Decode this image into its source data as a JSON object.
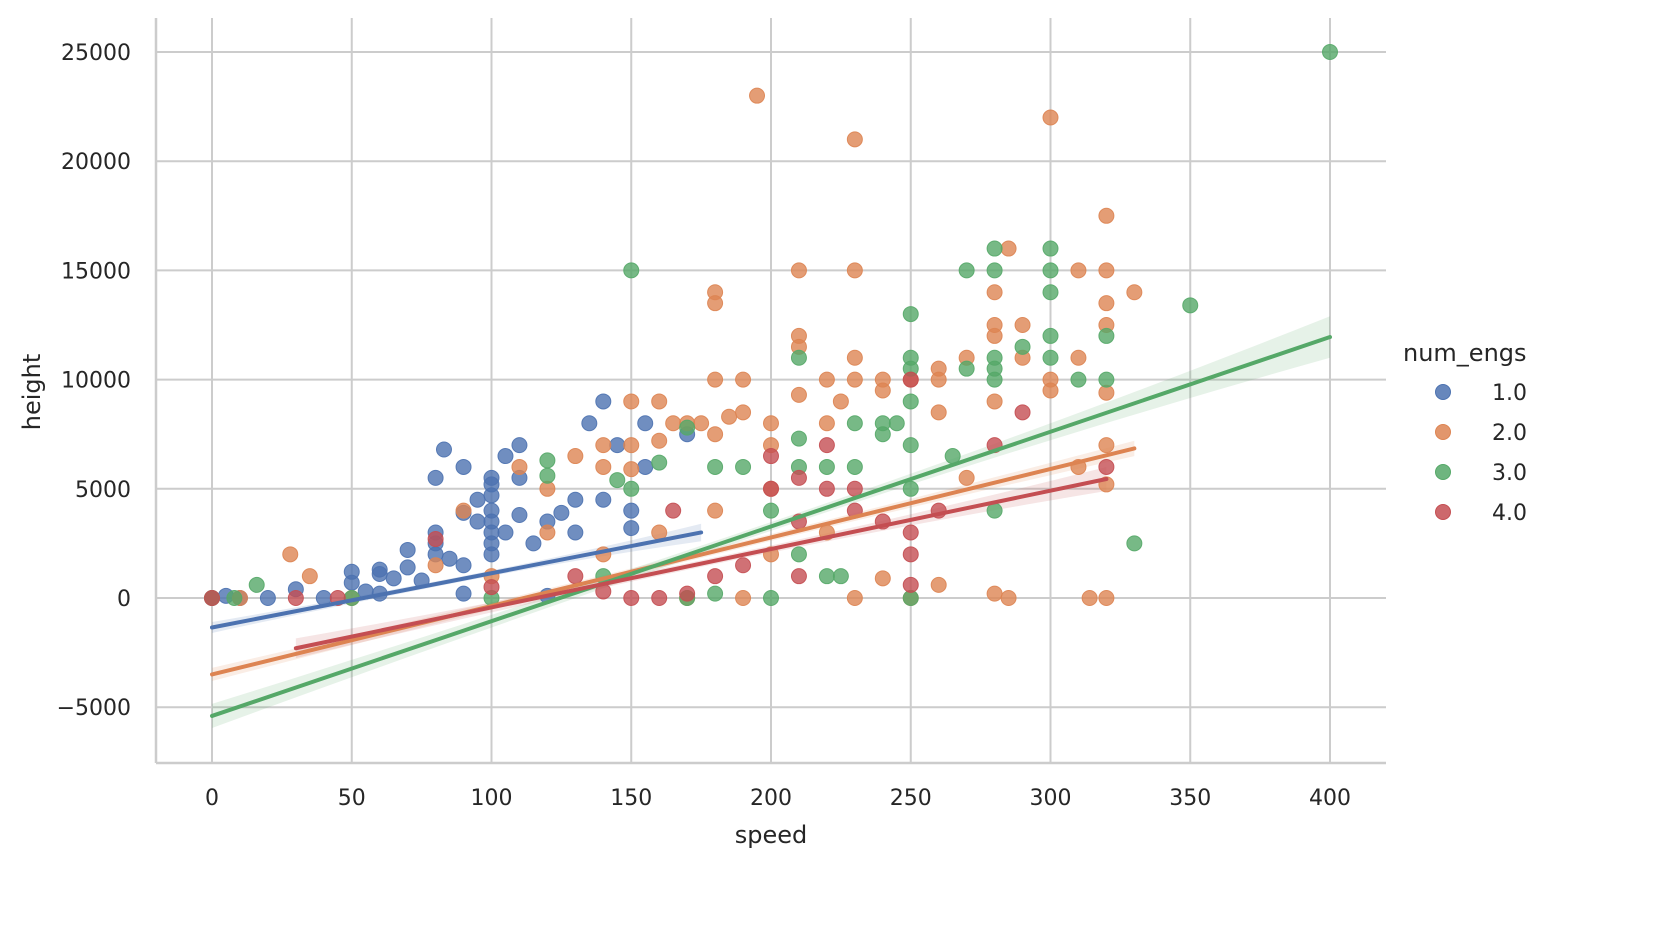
{
  "chart_data": {
    "type": "scatter",
    "title": "",
    "xlabel": "speed",
    "ylabel": "height",
    "xlim": [
      -20,
      420
    ],
    "ylim": [
      -7600,
      26600
    ],
    "xticks": [
      0,
      50,
      100,
      150,
      200,
      250,
      300,
      350,
      400
    ],
    "yticks": [
      -5000,
      0,
      5000,
      10000,
      15000,
      20000,
      25000
    ],
    "ytick_labels": [
      "−5000",
      "0",
      "5000",
      "10000",
      "15000",
      "20000",
      "25000"
    ],
    "xtick_labels": [
      "0",
      "50",
      "100",
      "150",
      "200",
      "250",
      "300",
      "350",
      "400"
    ],
    "grid": true,
    "legend": {
      "title": "num_engs",
      "placement": "right"
    },
    "series": [
      {
        "name": "1.0",
        "color": "#4c72b0",
        "fit": {
          "x_range": [
            0,
            175
          ],
          "intercept": -1350,
          "slope": 24.86,
          "ci_halfwidth": [
            250,
            120,
            400
          ]
        },
        "points": [
          [
            0,
            0
          ],
          [
            5,
            100
          ],
          [
            10,
            0
          ],
          [
            20,
            0
          ],
          [
            30,
            400
          ],
          [
            40,
            0
          ],
          [
            50,
            1200
          ],
          [
            50,
            700
          ],
          [
            55,
            300
          ],
          [
            60,
            1300
          ],
          [
            60,
            1100
          ],
          [
            60,
            200
          ],
          [
            65,
            900
          ],
          [
            70,
            2200
          ],
          [
            70,
            1400
          ],
          [
            75,
            800
          ],
          [
            80,
            5500
          ],
          [
            80,
            3000
          ],
          [
            80,
            2500
          ],
          [
            80,
            2000
          ],
          [
            83,
            6800
          ],
          [
            85,
            1800
          ],
          [
            90,
            6000
          ],
          [
            90,
            3900
          ],
          [
            90,
            1500
          ],
          [
            90,
            200
          ],
          [
            95,
            4500
          ],
          [
            95,
            3500
          ],
          [
            100,
            5500
          ],
          [
            100,
            5200
          ],
          [
            100,
            4700
          ],
          [
            100,
            4000
          ],
          [
            100,
            3500
          ],
          [
            100,
            3000
          ],
          [
            100,
            2500
          ],
          [
            100,
            2000
          ],
          [
            105,
            6500
          ],
          [
            105,
            3000
          ],
          [
            110,
            7000
          ],
          [
            110,
            5500
          ],
          [
            110,
            3800
          ],
          [
            115,
            2500
          ],
          [
            120,
            3500
          ],
          [
            120,
            100
          ],
          [
            125,
            3900
          ],
          [
            130,
            4500
          ],
          [
            130,
            3000
          ],
          [
            135,
            8000
          ],
          [
            140,
            9000
          ],
          [
            140,
            4500
          ],
          [
            145,
            7000
          ],
          [
            150,
            4000
          ],
          [
            150,
            3200
          ],
          [
            155,
            8000
          ],
          [
            155,
            6000
          ],
          [
            170,
            7500
          ]
        ]
      },
      {
        "name": "2.0",
        "color": "#dd8452",
        "fit": {
          "x_range": [
            0,
            330
          ],
          "intercept": -3500,
          "slope": 31.36,
          "ci_halfwidth": [
            300,
            150,
            350
          ]
        },
        "points": [
          [
            0,
            0
          ],
          [
            10,
            0
          ],
          [
            28,
            2000
          ],
          [
            35,
            1000
          ],
          [
            50,
            0
          ],
          [
            80,
            1500
          ],
          [
            90,
            4000
          ],
          [
            100,
            1000
          ],
          [
            110,
            6000
          ],
          [
            120,
            5000
          ],
          [
            120,
            3000
          ],
          [
            130,
            6500
          ],
          [
            140,
            7000
          ],
          [
            140,
            6000
          ],
          [
            140,
            2000
          ],
          [
            150,
            9000
          ],
          [
            150,
            7000
          ],
          [
            150,
            5900
          ],
          [
            160,
            9000
          ],
          [
            160,
            7200
          ],
          [
            160,
            3000
          ],
          [
            165,
            8000
          ],
          [
            170,
            8000
          ],
          [
            170,
            0
          ],
          [
            175,
            8000
          ],
          [
            180,
            14000
          ],
          [
            180,
            13500
          ],
          [
            180,
            10000
          ],
          [
            180,
            7500
          ],
          [
            180,
            4000
          ],
          [
            185,
            8300
          ],
          [
            190,
            10000
          ],
          [
            190,
            8500
          ],
          [
            190,
            0
          ],
          [
            195,
            23000
          ],
          [
            200,
            8000
          ],
          [
            200,
            7000
          ],
          [
            200,
            5000
          ],
          [
            200,
            2000
          ],
          [
            210,
            15000
          ],
          [
            210,
            12000
          ],
          [
            210,
            11500
          ],
          [
            210,
            9300
          ],
          [
            220,
            10000
          ],
          [
            220,
            8000
          ],
          [
            220,
            3000
          ],
          [
            225,
            9000
          ],
          [
            230,
            21000
          ],
          [
            230,
            15000
          ],
          [
            230,
            11000
          ],
          [
            230,
            10000
          ],
          [
            230,
            0
          ],
          [
            240,
            10000
          ],
          [
            240,
            9500
          ],
          [
            240,
            900
          ],
          [
            250,
            10000
          ],
          [
            250,
            0
          ],
          [
            260,
            10500
          ],
          [
            260,
            10000
          ],
          [
            260,
            8500
          ],
          [
            260,
            600
          ],
          [
            270,
            11000
          ],
          [
            270,
            5500
          ],
          [
            280,
            14000
          ],
          [
            280,
            12500
          ],
          [
            280,
            12000
          ],
          [
            280,
            9000
          ],
          [
            280,
            200
          ],
          [
            285,
            16000
          ],
          [
            285,
            0
          ],
          [
            290,
            12500
          ],
          [
            290,
            11000
          ],
          [
            300,
            22000
          ],
          [
            300,
            10000
          ],
          [
            300,
            9500
          ],
          [
            310,
            15000
          ],
          [
            310,
            11000
          ],
          [
            310,
            6000
          ],
          [
            314,
            0
          ],
          [
            320,
            17500
          ],
          [
            320,
            15000
          ],
          [
            320,
            13500
          ],
          [
            320,
            12500
          ],
          [
            320,
            9400
          ],
          [
            320,
            7000
          ],
          [
            320,
            5200
          ],
          [
            320,
            0
          ],
          [
            330,
            14000
          ]
        ]
      },
      {
        "name": "3.0",
        "color": "#55a868",
        "fit": {
          "x_range": [
            0,
            400
          ],
          "intercept": -5400,
          "slope": 43.375,
          "ci_halfwidth": [
            550,
            200,
            950
          ]
        },
        "points": [
          [
            0,
            0
          ],
          [
            8,
            0
          ],
          [
            16,
            600
          ],
          [
            50,
            0
          ],
          [
            100,
            0
          ],
          [
            120,
            6300
          ],
          [
            120,
            5600
          ],
          [
            140,
            1000
          ],
          [
            145,
            5400
          ],
          [
            150,
            15000
          ],
          [
            150,
            5000
          ],
          [
            160,
            6200
          ],
          [
            170,
            7800
          ],
          [
            170,
            0
          ],
          [
            180,
            6000
          ],
          [
            180,
            200
          ],
          [
            190,
            6000
          ],
          [
            200,
            4000
          ],
          [
            200,
            0
          ],
          [
            210,
            11000
          ],
          [
            210,
            7300
          ],
          [
            210,
            6000
          ],
          [
            210,
            2000
          ],
          [
            220,
            6000
          ],
          [
            220,
            1000
          ],
          [
            225,
            1000
          ],
          [
            230,
            8000
          ],
          [
            230,
            6000
          ],
          [
            240,
            8000
          ],
          [
            240,
            7500
          ],
          [
            245,
            8000
          ],
          [
            250,
            13000
          ],
          [
            250,
            11000
          ],
          [
            250,
            10500
          ],
          [
            250,
            9000
          ],
          [
            250,
            7000
          ],
          [
            250,
            5000
          ],
          [
            250,
            0
          ],
          [
            265,
            6500
          ],
          [
            270,
            15000
          ],
          [
            270,
            10500
          ],
          [
            280,
            16000
          ],
          [
            280,
            15000
          ],
          [
            280,
            11000
          ],
          [
            280,
            10500
          ],
          [
            280,
            10000
          ],
          [
            280,
            4000
          ],
          [
            290,
            11500
          ],
          [
            300,
            16000
          ],
          [
            300,
            15000
          ],
          [
            300,
            14000
          ],
          [
            300,
            12000
          ],
          [
            300,
            11000
          ],
          [
            310,
            10000
          ],
          [
            320,
            12000
          ],
          [
            320,
            10000
          ],
          [
            330,
            2500
          ],
          [
            350,
            13400
          ],
          [
            400,
            25000
          ]
        ]
      },
      {
        "name": "4.0",
        "color": "#c44e52",
        "fit": {
          "x_range": [
            30,
            320
          ],
          "intercept": -3102,
          "slope": 26.72,
          "ci_halfwidth": [
            450,
            150,
            550
          ]
        },
        "points": [
          [
            0,
            0
          ],
          [
            30,
            0
          ],
          [
            45,
            0
          ],
          [
            80,
            2700
          ],
          [
            100,
            500
          ],
          [
            130,
            1000
          ],
          [
            140,
            300
          ],
          [
            150,
            0
          ],
          [
            160,
            0
          ],
          [
            165,
            4000
          ],
          [
            170,
            200
          ],
          [
            180,
            1000
          ],
          [
            190,
            1500
          ],
          [
            200,
            6500
          ],
          [
            200,
            5000
          ],
          [
            210,
            5500
          ],
          [
            210,
            3500
          ],
          [
            210,
            1000
          ],
          [
            220,
            7000
          ],
          [
            220,
            5000
          ],
          [
            230,
            5000
          ],
          [
            230,
            4000
          ],
          [
            240,
            3500
          ],
          [
            250,
            10000
          ],
          [
            250,
            3000
          ],
          [
            250,
            2000
          ],
          [
            250,
            600
          ],
          [
            260,
            4000
          ],
          [
            280,
            7000
          ],
          [
            290,
            8500
          ],
          [
            320,
            6000
          ]
        ]
      }
    ]
  }
}
